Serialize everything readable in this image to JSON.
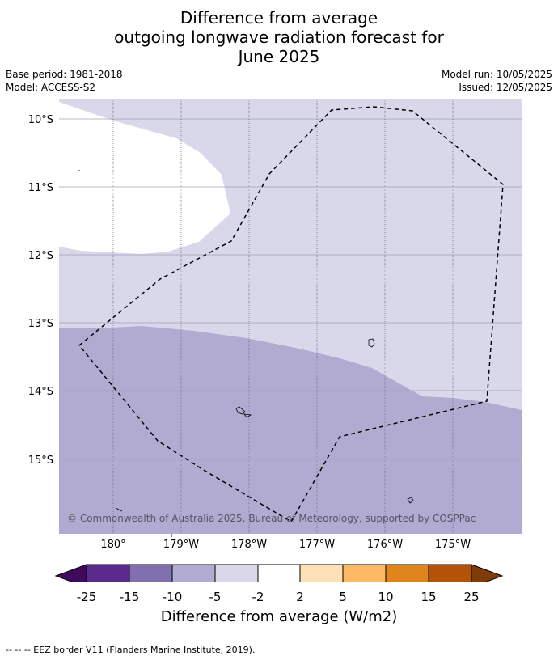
{
  "header": {
    "title_line1": "Difference from average",
    "title_line2": "outgoing longwave radiation forecast for",
    "title_line3": "June 2025",
    "base_period": "Base period: 1981-2018",
    "model": "Model: ACCESS-S2",
    "model_run": "Model run: 10/05/2025",
    "issued": "Issued: 12/05/2025"
  },
  "map": {
    "lat_labels": [
      "10°S",
      "11°S",
      "12°S",
      "13°S",
      "14°S",
      "15°S"
    ],
    "lon_labels": [
      "180°",
      "179°W",
      "178°W",
      "177°W",
      "176°W",
      "175°W"
    ],
    "copyright": "© Commonwealth of Australia 2025, Bureau of Meteorology, supported by COSPPac",
    "colors": {
      "band_neutral": "#ffffff",
      "band_minus2_minus5": "#d8d8ea",
      "band_minus5_minus10": "#b1abd2",
      "gridline": "#9a9ab0",
      "eez_border": "#000000"
    }
  },
  "colorbar": {
    "ticks": [
      "-25",
      "-15",
      "-10",
      "-5",
      "-2",
      "2",
      "5",
      "10",
      "15",
      "25"
    ],
    "colors": [
      "#3f0a5e",
      "#5a2a8c",
      "#8070ad",
      "#b1abd2",
      "#d8d8ea",
      "#ffffff",
      "#fde0b6",
      "#fdb864",
      "#e0841c",
      "#b45308",
      "#7f3b08"
    ],
    "label": "Difference from average (W/m2)"
  },
  "footnote": "--  --  -- EEZ border V11 (Flanders Marine Institute, 2019)."
}
